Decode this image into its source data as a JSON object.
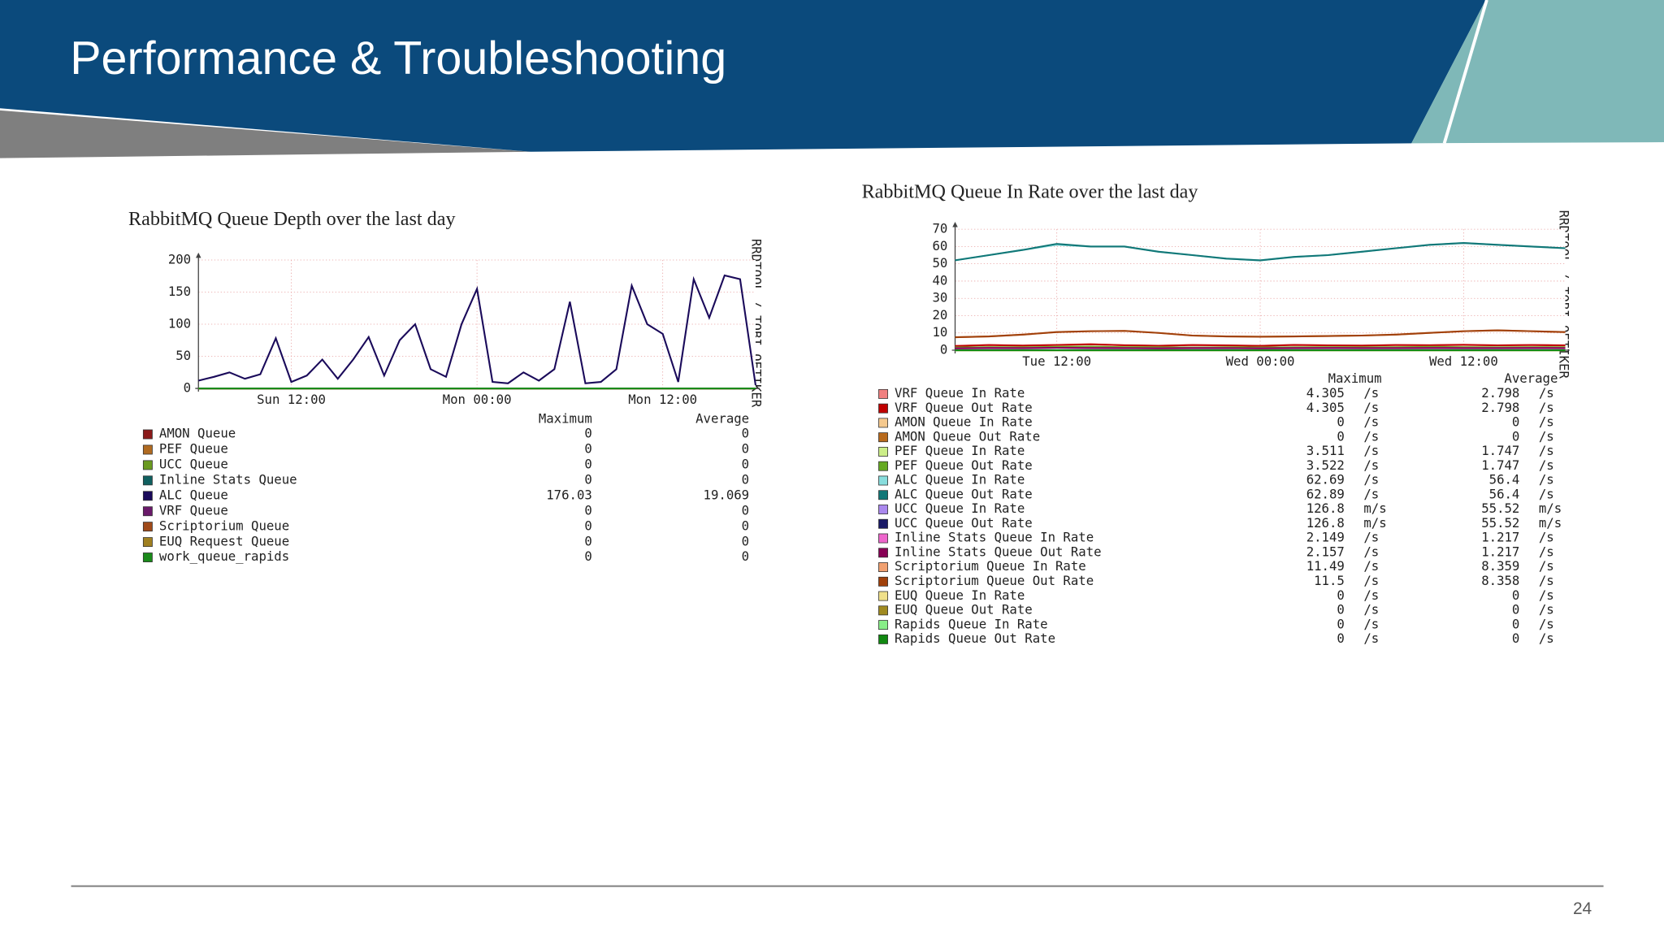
{
  "slide": {
    "title": "Performance & Troubleshooting",
    "page_number": "24"
  },
  "chart_data": [
    {
      "type": "line",
      "title": "RabbitMQ Queue Depth over the last day",
      "watermark": "RRDTOOL / TOBI OETIKER",
      "legend_headers": [
        "Maximum",
        "Average"
      ],
      "categories": [
        null,
        null,
        null,
        null,
        null,
        null,
        "Sun 12:00",
        null,
        null,
        null,
        null,
        null,
        null,
        null,
        null,
        null,
        null,
        null,
        "Mon 00:00",
        null,
        null,
        null,
        null,
        null,
        null,
        null,
        null,
        null,
        null,
        null,
        "Mon 12:00",
        null,
        null,
        null,
        null,
        null,
        null
      ],
      "ylim": [
        0,
        200
      ],
      "yticks": [
        0,
        50,
        100,
        150,
        200
      ],
      "grid": true,
      "series": [
        {
          "name": "AMON Queue",
          "color": "#8b1a1a",
          "maximum": 0,
          "average": 0,
          "values": [
            0,
            0,
            0,
            0,
            0,
            0,
            0,
            0,
            0,
            0,
            0,
            0,
            0,
            0,
            0,
            0,
            0,
            0,
            0,
            0,
            0,
            0,
            0,
            0,
            0,
            0,
            0,
            0,
            0,
            0,
            0,
            0,
            0,
            0,
            0,
            0,
            0
          ]
        },
        {
          "name": "PEF Queue",
          "color": "#b06a20",
          "maximum": 0,
          "average": 0,
          "values": [
            0,
            0,
            0,
            0,
            0,
            0,
            0,
            0,
            0,
            0,
            0,
            0,
            0,
            0,
            0,
            0,
            0,
            0,
            0,
            0,
            0,
            0,
            0,
            0,
            0,
            0,
            0,
            0,
            0,
            0,
            0,
            0,
            0,
            0,
            0,
            0,
            0
          ]
        },
        {
          "name": "UCC Queue",
          "color": "#6a9a20",
          "maximum": 0,
          "average": 0,
          "values": [
            0,
            0,
            0,
            0,
            0,
            0,
            0,
            0,
            0,
            0,
            0,
            0,
            0,
            0,
            0,
            0,
            0,
            0,
            0,
            0,
            0,
            0,
            0,
            0,
            0,
            0,
            0,
            0,
            0,
            0,
            0,
            0,
            0,
            0,
            0,
            0,
            0
          ]
        },
        {
          "name": "Inline Stats Queue",
          "color": "#106060",
          "maximum": 0,
          "average": 0,
          "values": [
            0,
            0,
            0,
            0,
            0,
            0,
            0,
            0,
            0,
            0,
            0,
            0,
            0,
            0,
            0,
            0,
            0,
            0,
            0,
            0,
            0,
            0,
            0,
            0,
            0,
            0,
            0,
            0,
            0,
            0,
            0,
            0,
            0,
            0,
            0,
            0,
            0
          ]
        },
        {
          "name": "ALC Queue",
          "color": "#1a0a5a",
          "maximum": 176.03,
          "average": 19.069,
          "values": [
            12,
            18,
            25,
            15,
            22,
            78,
            10,
            20,
            45,
            15,
            45,
            80,
            20,
            75,
            100,
            30,
            18,
            100,
            155,
            10,
            8,
            25,
            12,
            30,
            135,
            8,
            10,
            30,
            160,
            100,
            85,
            10,
            170,
            110,
            176.03,
            170,
            5
          ]
        },
        {
          "name": "VRF Queue",
          "color": "#6a1a6a",
          "maximum": 0,
          "average": 0,
          "values": [
            0,
            0,
            0,
            0,
            0,
            0,
            0,
            0,
            0,
            0,
            0,
            0,
            0,
            0,
            0,
            0,
            0,
            0,
            0,
            0,
            0,
            0,
            0,
            0,
            0,
            0,
            0,
            0,
            0,
            0,
            0,
            0,
            0,
            0,
            0,
            0,
            0
          ]
        },
        {
          "name": "Scriptorium Queue",
          "color": "#a04a1a",
          "maximum": 0,
          "average": 0,
          "values": [
            0,
            0,
            0,
            0,
            0,
            0,
            0,
            0,
            0,
            0,
            0,
            0,
            0,
            0,
            0,
            0,
            0,
            0,
            0,
            0,
            0,
            0,
            0,
            0,
            0,
            0,
            0,
            0,
            0,
            0,
            0,
            0,
            0,
            0,
            0,
            0,
            0
          ]
        },
        {
          "name": "EUQ Request Queue",
          "color": "#a08020",
          "maximum": 0,
          "average": 0,
          "values": [
            0,
            0,
            0,
            0,
            0,
            0,
            0,
            0,
            0,
            0,
            0,
            0,
            0,
            0,
            0,
            0,
            0,
            0,
            0,
            0,
            0,
            0,
            0,
            0,
            0,
            0,
            0,
            0,
            0,
            0,
            0,
            0,
            0,
            0,
            0,
            0,
            0
          ]
        },
        {
          "name": "work_queue_rapids",
          "color": "#1a8a1a",
          "maximum": 0,
          "average": 0,
          "values": [
            0,
            0,
            0,
            0,
            0,
            0,
            0,
            0,
            0,
            0,
            0,
            0,
            0,
            0,
            0,
            0,
            0,
            0,
            0,
            0,
            0,
            0,
            0,
            0,
            0,
            0,
            0,
            0,
            0,
            0,
            0,
            0,
            0,
            0,
            0,
            0,
            0
          ]
        }
      ]
    },
    {
      "type": "line",
      "title": "RabbitMQ Queue In Rate over the last day",
      "watermark": "RRDTOOL / TOBI OETIKER",
      "legend_headers": [
        "Maximum",
        "Average"
      ],
      "categories": [
        null,
        null,
        null,
        "Tue 12:00",
        null,
        null,
        null,
        null,
        null,
        "Wed 00:00",
        null,
        null,
        null,
        null,
        null,
        "Wed 12:00",
        null,
        null,
        null
      ],
      "ylim": [
        0,
        70
      ],
      "yticks": [
        0,
        10,
        20,
        30,
        40,
        50,
        60,
        70
      ],
      "grid": true,
      "series": [
        {
          "name": "VRF Queue In Rate",
          "color": "#f08080",
          "maximum": 4.305,
          "maximum_unit": "/s",
          "average": 2.798,
          "average_unit": "/s",
          "values": [
            2.5,
            3,
            2.6,
            3.1,
            3.5,
            2.8,
            2.5,
            3,
            2.7,
            2.5,
            3,
            2.8,
            2.6,
            3,
            2.9,
            3.2,
            2.8,
            3,
            2.7
          ]
        },
        {
          "name": "VRF Queue Out Rate",
          "color": "#c00000",
          "maximum": 4.305,
          "maximum_unit": "/s",
          "average": 2.798,
          "average_unit": "/s",
          "values": [
            2.4,
            3,
            2.7,
            3,
            3.4,
            2.9,
            2.6,
            3,
            2.8,
            2.5,
            3.1,
            2.8,
            2.7,
            3,
            2.9,
            3.1,
            2.8,
            3,
            2.8
          ]
        },
        {
          "name": "AMON Queue In Rate",
          "color": "#f5c98e",
          "maximum": 0,
          "maximum_unit": "/s",
          "average": 0,
          "average_unit": "/s",
          "values": [
            0,
            0,
            0,
            0,
            0,
            0,
            0,
            0,
            0,
            0,
            0,
            0,
            0,
            0,
            0,
            0,
            0,
            0,
            0
          ]
        },
        {
          "name": "AMON Queue Out Rate",
          "color": "#b86a1c",
          "maximum": 0,
          "maximum_unit": "/s",
          "average": 0,
          "average_unit": "/s",
          "values": [
            0,
            0,
            0,
            0,
            0,
            0,
            0,
            0,
            0,
            0,
            0,
            0,
            0,
            0,
            0,
            0,
            0,
            0,
            0
          ]
        },
        {
          "name": "PEF Queue In Rate",
          "color": "#ccee88",
          "maximum": 3.511,
          "maximum_unit": "/s",
          "average": 1.747,
          "average_unit": "/s",
          "values": [
            1.6,
            1.8,
            1.7,
            1.9,
            2,
            1.8,
            1.7,
            1.6,
            1.7,
            1.6,
            1.7,
            1.8,
            1.7,
            1.8,
            1.9,
            1.8,
            1.7,
            1.8,
            1.7
          ]
        },
        {
          "name": "PEF Queue Out Rate",
          "color": "#66aa22",
          "maximum": 3.522,
          "maximum_unit": "/s",
          "average": 1.747,
          "average_unit": "/s",
          "values": [
            1.6,
            1.8,
            1.7,
            1.9,
            2,
            1.8,
            1.7,
            1.6,
            1.7,
            1.6,
            1.7,
            1.8,
            1.7,
            1.8,
            1.9,
            1.8,
            1.7,
            1.8,
            1.7
          ]
        },
        {
          "name": "ALC Queue In Rate",
          "color": "#88dddd",
          "maximum": 62.69,
          "maximum_unit": "/s",
          "average": 56.4,
          "average_unit": "/s",
          "values": [
            52,
            55,
            58,
            61,
            60,
            60,
            57,
            55,
            53,
            52,
            54,
            55,
            57,
            59,
            61,
            62,
            61,
            60,
            59
          ]
        },
        {
          "name": "ALC Queue Out Rate",
          "color": "#117777",
          "maximum": 62.89,
          "maximum_unit": "/s",
          "average": 56.4,
          "average_unit": "/s",
          "values": [
            52,
            55,
            58,
            61.5,
            60,
            60,
            57,
            55,
            53,
            52,
            54,
            55,
            57,
            59,
            61,
            62,
            61,
            60,
            59
          ]
        },
        {
          "name": "UCC Queue In Rate",
          "color": "#aa88ee",
          "maximum": 126.8,
          "maximum_unit": "m/s",
          "average": 55.52,
          "average_unit": "m/s",
          "values": [
            0.05,
            0.06,
            0.05,
            0.06,
            0.05,
            0.06,
            0.05,
            0.05,
            0.06,
            0.05,
            0.06,
            0.05,
            0.06,
            0.05,
            0.06,
            0.05,
            0.06,
            0.05,
            0.05
          ]
        },
        {
          "name": "UCC Queue Out Rate",
          "color": "#1a1a66",
          "maximum": 126.8,
          "maximum_unit": "m/s",
          "average": 55.52,
          "average_unit": "m/s",
          "values": [
            0.05,
            0.06,
            0.05,
            0.06,
            0.05,
            0.06,
            0.05,
            0.05,
            0.06,
            0.05,
            0.06,
            0.05,
            0.06,
            0.05,
            0.06,
            0.05,
            0.06,
            0.05,
            0.05
          ]
        },
        {
          "name": "Inline Stats Queue In Rate",
          "color": "#ee66cc",
          "maximum": 2.149,
          "maximum_unit": "/s",
          "average": 1.217,
          "average_unit": "/s",
          "values": [
            1.1,
            1.3,
            1.2,
            1.4,
            1.3,
            1.2,
            1.1,
            1.2,
            1.2,
            1.1,
            1.2,
            1.3,
            1.2,
            1.2,
            1.3,
            1.2,
            1.2,
            1.3,
            1.2
          ]
        },
        {
          "name": "Inline Stats Queue Out Rate",
          "color": "#880055",
          "maximum": 2.157,
          "maximum_unit": "/s",
          "average": 1.217,
          "average_unit": "/s",
          "values": [
            1.1,
            1.3,
            1.2,
            1.4,
            1.3,
            1.2,
            1.1,
            1.2,
            1.2,
            1.1,
            1.2,
            1.3,
            1.2,
            1.2,
            1.3,
            1.2,
            1.2,
            1.3,
            1.2
          ]
        },
        {
          "name": "Scriptorium Queue In Rate",
          "color": "#f0a070",
          "maximum": 11.49,
          "maximum_unit": "/s",
          "average": 8.359,
          "average_unit": "/s",
          "values": [
            7.5,
            8,
            9,
            10.5,
            11,
            11.2,
            10,
            8.5,
            8,
            7.8,
            8,
            8.2,
            8.5,
            9,
            10,
            11,
            11.49,
            11,
            10.5
          ]
        },
        {
          "name": "Scriptorium Queue Out Rate",
          "color": "#a0400a",
          "maximum": 11.5,
          "maximum_unit": "/s",
          "average": 8.358,
          "average_unit": "/s",
          "values": [
            7.5,
            8,
            9,
            10.5,
            11,
            11.2,
            10,
            8.5,
            8,
            7.8,
            8,
            8.2,
            8.5,
            9,
            10,
            11,
            11.5,
            11,
            10.5
          ]
        },
        {
          "name": "EUQ Queue In Rate",
          "color": "#f0e08a",
          "maximum": 0,
          "maximum_unit": "/s",
          "average": 0,
          "average_unit": "/s",
          "values": [
            0,
            0,
            0,
            0,
            0,
            0,
            0,
            0,
            0,
            0,
            0,
            0,
            0,
            0,
            0,
            0,
            0,
            0,
            0
          ]
        },
        {
          "name": "EUQ Queue Out Rate",
          "color": "#a08a20",
          "maximum": 0,
          "maximum_unit": "/s",
          "average": 0,
          "average_unit": "/s",
          "values": [
            0,
            0,
            0,
            0,
            0,
            0,
            0,
            0,
            0,
            0,
            0,
            0,
            0,
            0,
            0,
            0,
            0,
            0,
            0
          ]
        },
        {
          "name": "Rapids Queue In Rate",
          "color": "#88ee88",
          "maximum": 0,
          "maximum_unit": "/s",
          "average": 0,
          "average_unit": "/s",
          "values": [
            0,
            0,
            0,
            0,
            0,
            0,
            0,
            0,
            0,
            0,
            0,
            0,
            0,
            0,
            0,
            0,
            0,
            0,
            0
          ]
        },
        {
          "name": "Rapids Queue Out Rate",
          "color": "#118811",
          "maximum": 0,
          "maximum_unit": "/s",
          "average": 0,
          "average_unit": "/s",
          "values": [
            0,
            0,
            0,
            0,
            0,
            0,
            0,
            0,
            0,
            0,
            0,
            0,
            0,
            0,
            0,
            0,
            0,
            0,
            0
          ]
        }
      ]
    }
  ]
}
